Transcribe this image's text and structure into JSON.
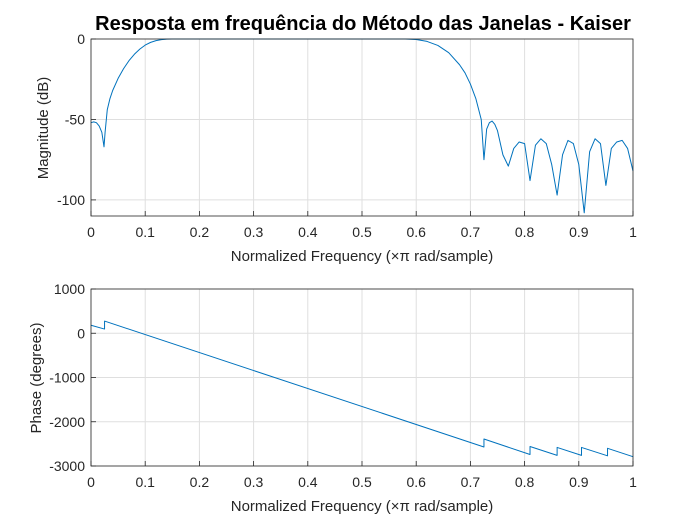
{
  "chart_data": [
    {
      "type": "line",
      "title": "Resposta em frequência do Método das Janelas - Kaiser",
      "xlabel": "Normalized Frequency  (×π rad/sample)",
      "ylabel": "Magnitude (dB)",
      "xlim": [
        0,
        1
      ],
      "ylim": [
        -110,
        0
      ],
      "xticks": [
        "0",
        "0.1",
        "0.2",
        "0.3",
        "0.4",
        "0.5",
        "0.6",
        "0.7",
        "0.8",
        "0.9",
        "1"
      ],
      "yticks": [
        "0",
        "-50",
        "-100"
      ],
      "grid": true,
      "line_color": "#0072BD",
      "series": [
        {
          "x": [
            0,
            0.005,
            0.01,
            0.015,
            0.02,
            0.024,
            0.026,
            0.03,
            0.035,
            0.04,
            0.05,
            0.06,
            0.07,
            0.08,
            0.09,
            0.1,
            0.11,
            0.12,
            0.13,
            0.14,
            0.15,
            0.16,
            0.18,
            0.2,
            0.3,
            0.4,
            0.5,
            0.58,
            0.6,
            0.62,
            0.64,
            0.66,
            0.68,
            0.69,
            0.7,
            0.71,
            0.72,
            0.725,
            0.73,
            0.735,
            0.74,
            0.745,
            0.75,
            0.76,
            0.77,
            0.78,
            0.79,
            0.8,
            0.81,
            0.82,
            0.83,
            0.84,
            0.85,
            0.86,
            0.87,
            0.88,
            0.89,
            0.9,
            0.91,
            0.92,
            0.93,
            0.94,
            0.95,
            0.96,
            0.97,
            0.98,
            0.99,
            1.0
          ],
          "y": [
            -52,
            -51.5,
            -52,
            -54,
            -58,
            -67,
            -58,
            -44,
            -37,
            -32,
            -24.5,
            -18.5,
            -13.5,
            -9.5,
            -6.3,
            -3.8,
            -2.1,
            -1,
            -0.4,
            -0.1,
            0,
            0,
            0,
            0,
            0,
            0,
            0,
            0,
            -0.3,
            -1.5,
            -4,
            -8.5,
            -16,
            -21,
            -28,
            -37,
            -50,
            -75,
            -56,
            -52,
            -51,
            -53,
            -57,
            -72,
            -79,
            -68,
            -64,
            -65,
            -88,
            -66,
            -62,
            -65,
            -78,
            -97,
            -72,
            -63,
            -65,
            -78,
            -108,
            -70,
            -62,
            -65,
            -91,
            -68,
            -64,
            -63,
            -68,
            -82
          ]
        }
      ]
    },
    {
      "type": "line",
      "title": "",
      "xlabel": "Normalized Frequency  (×π rad/sample)",
      "ylabel": "Phase (degrees)",
      "xlim": [
        0,
        1
      ],
      "ylim": [
        -3000,
        1000
      ],
      "xticks": [
        "0",
        "0.1",
        "0.2",
        "0.3",
        "0.4",
        "0.5",
        "0.6",
        "0.7",
        "0.8",
        "0.9",
        "1"
      ],
      "yticks": [
        "1000",
        "0",
        "-1000",
        "-2000",
        "-3000"
      ],
      "grid": true,
      "line_color": "#0072BD",
      "series": [
        {
          "x": [
            0,
            0.025,
            0.025,
            0.725,
            0.725,
            0.81,
            0.81,
            0.86,
            0.86,
            0.905,
            0.905,
            0.953,
            0.953,
            1.0
          ],
          "y": [
            180,
            95,
            275,
            -2570,
            -2390,
            -2740,
            -2560,
            -2760,
            -2580,
            -2760,
            -2580,
            -2770,
            -2600,
            -2790
          ]
        }
      ]
    }
  ]
}
